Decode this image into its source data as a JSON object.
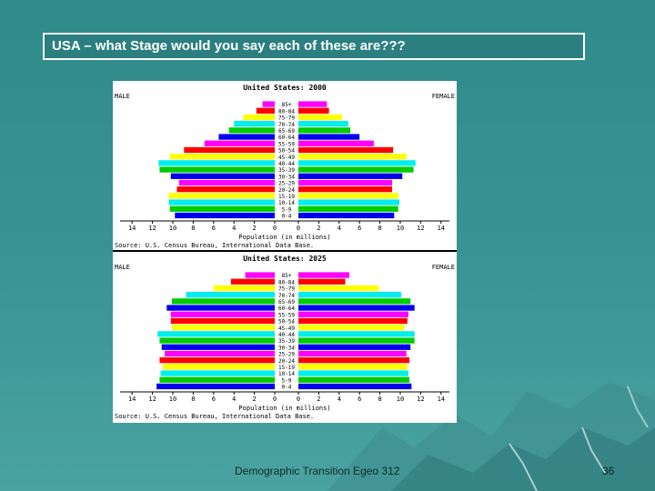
{
  "slide": {
    "title": "USA – what Stage would you say  each of these are???",
    "footer": "Demographic Transition Egeo 312",
    "page_number": "36"
  },
  "colors": {
    "background": "#3a9494",
    "title_border": "#ffffff",
    "age_group_colors": [
      "#0000ee",
      "#00cc00",
      "#00eeee",
      "#ffff00",
      "#ff0000",
      "#ff00ff",
      "#0000ee",
      "#00cc00",
      "#00eeee",
      "#ffff00",
      "#ff0000",
      "#ff00ff",
      "#0000ee",
      "#00cc00",
      "#00eeee",
      "#ffff00",
      "#ff0000",
      "#ff00ff"
    ]
  },
  "chart_data": [
    {
      "type": "bar",
      "orientation": "horizontal",
      "layout": "population-pyramid",
      "title": "United States: 2000",
      "left_label": "MALE",
      "right_label": "FEMALE",
      "xlabel": "Population (in millions)",
      "source": "Source: U.S. Census Bureau, International Data Base.",
      "categories": [
        "0-4",
        "5-9",
        "10-14",
        "15-19",
        "20-24",
        "25-29",
        "30-34",
        "35-39",
        "40-44",
        "45-49",
        "50-54",
        "55-59",
        "60-64",
        "65-69",
        "70-74",
        "75-79",
        "80-84",
        "85+"
      ],
      "category_labels_shown": [
        "0-4",
        "5-9",
        "10-14",
        "15-19",
        "20-24",
        "25-29",
        "30-34",
        "35-39",
        "40-44",
        "45-49",
        "50-54",
        "55-59",
        "60-64",
        "65-69",
        "70-74",
        "75-79",
        "80-84",
        "85+"
      ],
      "series": [
        {
          "name": "MALE",
          "values": [
            9.8,
            10.3,
            10.4,
            10.4,
            9.6,
            9.4,
            10.2,
            11.3,
            11.4,
            10.3,
            8.9,
            6.9,
            5.5,
            4.5,
            4.0,
            3.1,
            1.8,
            1.2
          ]
        },
        {
          "name": "FEMALE",
          "values": [
            9.4,
            9.8,
            9.9,
            9.8,
            9.2,
            9.2,
            10.2,
            11.3,
            11.5,
            10.6,
            9.3,
            7.4,
            6.0,
            5.1,
            4.9,
            4.3,
            3.0,
            2.8
          ]
        }
      ],
      "xticks": [
        "14",
        "12",
        "10",
        "8",
        "6",
        "4",
        "2",
        "0",
        "0",
        "2",
        "4",
        "6",
        "8",
        "10",
        "12",
        "14"
      ],
      "xlim": [
        0,
        14
      ]
    },
    {
      "type": "bar",
      "orientation": "horizontal",
      "layout": "population-pyramid",
      "title": "United States: 2025",
      "left_label": "MALE",
      "right_label": "FEMALE",
      "xlabel": "Population (in millions)",
      "source": "Source: U.S. Census Bureau, International Data Base.",
      "categories": [
        "0-4",
        "5-9",
        "10-14",
        "15-19",
        "20-24",
        "25-29",
        "30-34",
        "35-39",
        "40-44",
        "45-49",
        "50-54",
        "55-59",
        "60-64",
        "65-69",
        "70-74",
        "75-79",
        "80-84",
        "85+"
      ],
      "category_labels_shown": [
        "0-4",
        "5-9",
        "10-14",
        "15-19",
        "20-24",
        "25-29",
        "30-34",
        "35-39",
        "40-44",
        "45-49",
        "50-54",
        "55-59",
        "60-64",
        "65-69",
        "70-74",
        "75-79",
        "80-84",
        "85+"
      ],
      "series": [
        {
          "name": "MALE",
          "values": [
            11.6,
            11.3,
            11.2,
            11.0,
            11.3,
            10.8,
            11.1,
            11.3,
            11.5,
            10.1,
            10.2,
            10.2,
            10.6,
            10.1,
            8.7,
            6.0,
            4.3,
            2.9
          ]
        },
        {
          "name": "FEMALE",
          "values": [
            11.1,
            10.9,
            10.8,
            10.7,
            10.9,
            10.6,
            11.0,
            11.4,
            11.4,
            10.4,
            10.7,
            10.8,
            11.4,
            11.0,
            10.1,
            7.9,
            4.6,
            5.0
          ]
        }
      ],
      "xticks": [
        "14",
        "12",
        "10",
        "8",
        "6",
        "4",
        "2",
        "0",
        "0",
        "2",
        "4",
        "6",
        "8",
        "10",
        "12",
        "14"
      ],
      "xlim": [
        0,
        14
      ]
    }
  ]
}
